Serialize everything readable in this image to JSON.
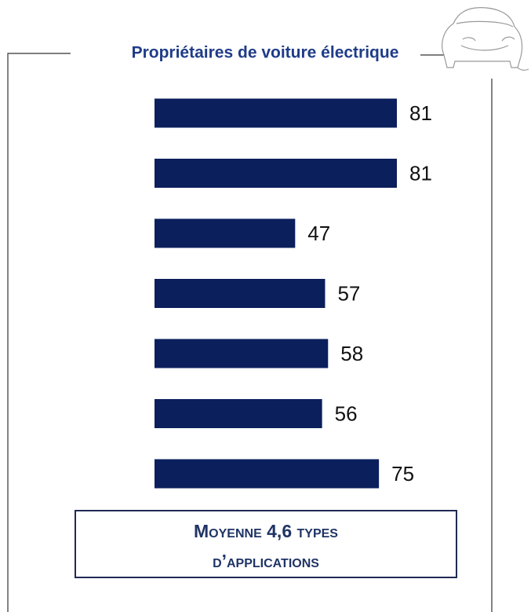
{
  "chart_data": {
    "type": "bar",
    "orientation": "horizontal",
    "title": "Propriétaires de voiture électrique",
    "categories": [
      null,
      null,
      null,
      null,
      null,
      null,
      null
    ],
    "values": [
      81,
      81,
      47,
      57,
      58,
      56,
      75
    ],
    "color": "#0b1f5c",
    "annotation": [
      "Moyenne 4,6 types",
      "d’applications"
    ]
  }
}
